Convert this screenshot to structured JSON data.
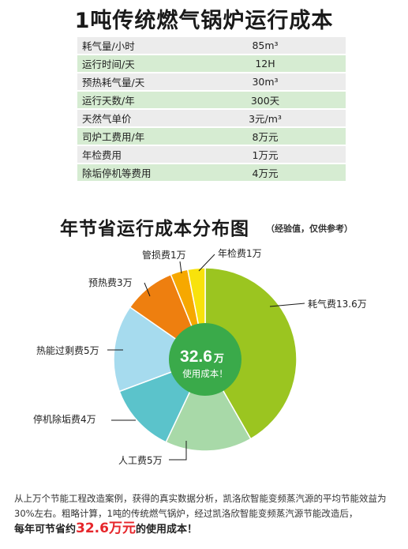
{
  "header": {
    "title": "1吨传统燃气锅炉运行成本"
  },
  "table": {
    "rows": [
      {
        "label": "耗气量/小时",
        "value": "85m³"
      },
      {
        "label": "运行时间/天",
        "value": "12H"
      },
      {
        "label": "预热耗气量/天",
        "value": "30m³"
      },
      {
        "label": "运行天数/年",
        "value": "300天"
      },
      {
        "label": "天然气单价",
        "value": "3元/m³"
      },
      {
        "label": "司炉工费用/年",
        "value": "8万元"
      },
      {
        "label": "年检费用",
        "value": "1万元"
      },
      {
        "label": "除垢停机等费用",
        "value": "4万元"
      }
    ]
  },
  "chart_section": {
    "title": "年节省运行成本分布图",
    "note": "（经验值，仅供参考）"
  },
  "chart_data": {
    "type": "pie",
    "title": "年节省运行成本分布图",
    "unit": "万",
    "center_value": "32.6",
    "center_unit": "万",
    "center_caption": "使用成本！",
    "slices": [
      {
        "label": "耗气费13.6万",
        "value": 13.6,
        "color": "#9bc520"
      },
      {
        "label": "人工费5万",
        "value": 5,
        "color": "#a8d9a8"
      },
      {
        "label": "停机除垢费4万",
        "value": 4,
        "color": "#5bc3cb"
      },
      {
        "label": "热能过剩费5万",
        "value": 5,
        "color": "#a6dbee"
      },
      {
        "label": "预热费3万",
        "value": 3,
        "color": "#ee7f0f"
      },
      {
        "label": "管损费1万",
        "value": 1,
        "color": "#f6a800"
      },
      {
        "label": "年检费1万",
        "value": 1,
        "color": "#f8e20c"
      }
    ]
  },
  "footer": {
    "text": "从上万个节能工程改造案例，获得的真实数据分析，凯洛欣智能变频蒸汽源的平均节能效益为30%左右。粗略计算，1吨的传统燃气锅炉，经过凯洛欣智能变频蒸汽源节能改造后，",
    "total_prefix": "每年可节省约",
    "total_value": "32.6万元",
    "total_suffix": "的使用成本！"
  }
}
